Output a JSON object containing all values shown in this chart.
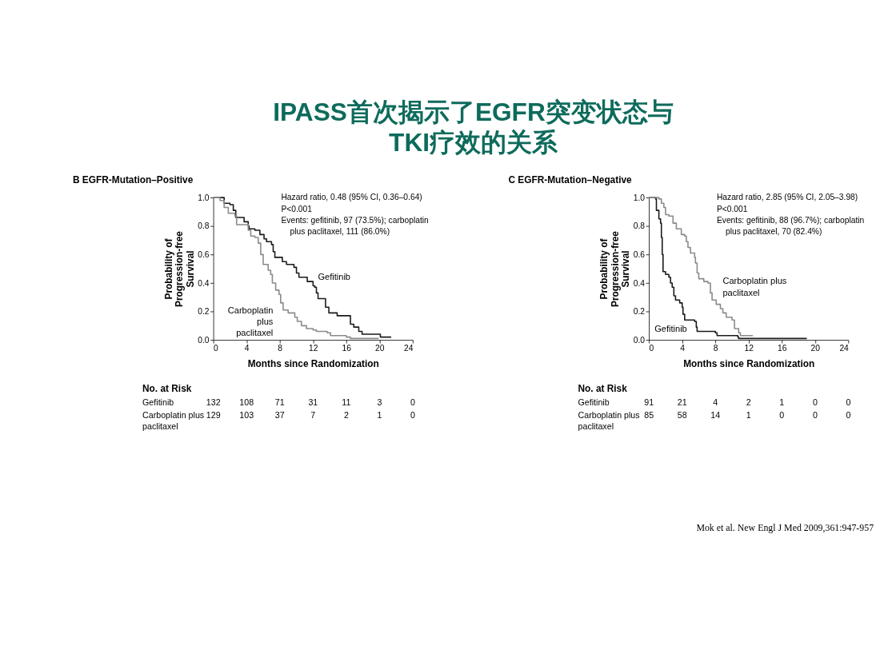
{
  "chart_data": [
    {
      "type": "step",
      "title": "IPASS首次揭示了EGFR突变状态与TKI疗效的关系",
      "subtitle": "B EGFR-Mutation–Positive",
      "xlabel": "Months since Randomization",
      "ylabel": "Probability of Progression-free Survival",
      "xlim": [
        0,
        24
      ],
      "ylim": [
        0,
        1
      ],
      "xticks": [
        0,
        4,
        8,
        12,
        16,
        20,
        24
      ],
      "yticks": [
        {
          "value": 0,
          "label": "0.0"
        },
        {
          "value": 0.2,
          "label": "0.2"
        },
        {
          "value": 0.4,
          "label": "0.4"
        },
        {
          "value": 0.6,
          "label": "0.6"
        },
        {
          "value": 0.8,
          "label": "0.8"
        },
        {
          "value": 1,
          "label": "1.0"
        }
      ],
      "grid": false,
      "legend": false,
      "marker": "none",
      "line_style": "solid",
      "series": [
        {
          "name": "Gefitinib",
          "color": "#1a1a1a",
          "x": [
            0,
            1.3,
            2.0,
            2.4,
            2.7,
            3.7,
            4.2,
            4.3,
            5.0,
            5.6,
            6.1,
            6.4,
            7.0,
            7.2,
            7.4,
            8.3,
            8.8,
            9.7,
            10.0,
            10.3,
            11.3,
            12.0,
            12.2,
            12.4,
            12.6,
            13.5,
            13.9,
            14.9,
            16.5,
            16.9,
            17.5,
            17.9,
            20.1,
            21.4
          ],
          "values": [
            1.0,
            0.96,
            0.95,
            0.91,
            0.86,
            0.83,
            0.8,
            0.78,
            0.77,
            0.74,
            0.71,
            0.69,
            0.67,
            0.62,
            0.58,
            0.55,
            0.53,
            0.51,
            0.47,
            0.44,
            0.41,
            0.38,
            0.37,
            0.33,
            0.29,
            0.23,
            0.19,
            0.17,
            0.11,
            0.09,
            0.06,
            0.04,
            0.02,
            0.02
          ]
        },
        {
          "name": "Carboplatin plus paclitaxel",
          "color": "#8a8a8a",
          "x": [
            0,
            0.8,
            1.3,
            1.8,
            2.6,
            2.8,
            4.2,
            4.5,
            5.0,
            5.4,
            5.7,
            6.0,
            6.6,
            6.9,
            7.1,
            7.5,
            7.9,
            8.1,
            8.4,
            9.0,
            9.8,
            10.1,
            10.6,
            11.2,
            12.0,
            12.4,
            13.7,
            14.1,
            16.0,
            16.5,
            19.9
          ],
          "values": [
            1.0,
            0.98,
            0.93,
            0.89,
            0.87,
            0.81,
            0.77,
            0.73,
            0.72,
            0.68,
            0.6,
            0.53,
            0.49,
            0.46,
            0.4,
            0.35,
            0.32,
            0.26,
            0.21,
            0.19,
            0.16,
            0.13,
            0.1,
            0.08,
            0.07,
            0.06,
            0.05,
            0.03,
            0.02,
            0.01,
            0.01
          ]
        }
      ],
      "annotations": [
        "Hazard ratio, 0.48 (95% CI, 0.36–0.64)",
        "P<0.001",
        "Events: gefitinib, 97 (73.5%); carboplatin",
        "plus paclitaxel, 111 (86.0%)",
        "No. at Risk",
        "Gefitinib  132  108  71  31  11  3  0",
        "Carboplatin plus paclitaxel  129  103  37  7  2  1  0"
      ]
    },
    {
      "type": "step",
      "subtitle": "C EGFR-Mutation–Negative",
      "xlabel": "Months since Randomization",
      "ylabel": "Probability of Progression-free Survival",
      "xlim": [
        0,
        24
      ],
      "ylim": [
        0,
        1
      ],
      "xticks": [
        0,
        4,
        8,
        12,
        16,
        20,
        24
      ],
      "yticks": [
        {
          "value": 0,
          "label": "0.0"
        },
        {
          "value": 0.2,
          "label": "0.2"
        },
        {
          "value": 0.4,
          "label": "0.4"
        },
        {
          "value": 0.6,
          "label": "0.6"
        },
        {
          "value": 0.8,
          "label": "0.8"
        },
        {
          "value": 1,
          "label": "1.0"
        }
      ],
      "grid": false,
      "legend": false,
      "marker": "none",
      "line_style": "solid",
      "series": [
        {
          "name": "Gefitinib",
          "color": "#1a1a1a",
          "x": [
            0,
            0.8,
            0.9,
            1.2,
            1.4,
            1.5,
            1.6,
            1.7,
            2.0,
            2.4,
            2.6,
            2.8,
            3.0,
            3.2,
            3.7,
            4.0,
            4.1,
            4.3,
            5.5,
            5.7,
            5.8,
            8.0,
            8.2,
            10.7,
            10.8,
            19.0
          ],
          "values": [
            1.0,
            0.99,
            0.91,
            0.85,
            0.82,
            0.72,
            0.6,
            0.48,
            0.46,
            0.44,
            0.4,
            0.37,
            0.31,
            0.28,
            0.26,
            0.23,
            0.18,
            0.14,
            0.13,
            0.09,
            0.06,
            0.05,
            0.03,
            0.02,
            0.01,
            0.01
          ]
        },
        {
          "name": "Carboplatin plus paclitaxel",
          "color": "#8a8a8a",
          "x": [
            0,
            1.2,
            1.5,
            1.8,
            2.0,
            2.4,
            2.9,
            3.3,
            3.9,
            4.3,
            4.5,
            4.7,
            5.0,
            5.5,
            5.6,
            5.8,
            6.0,
            6.6,
            7.1,
            7.4,
            7.6,
            8.1,
            8.6,
            8.9,
            9.3,
            10.0,
            10.3,
            10.8,
            11.0,
            12.5
          ],
          "values": [
            1.0,
            0.99,
            0.96,
            0.93,
            0.88,
            0.87,
            0.82,
            0.78,
            0.74,
            0.73,
            0.69,
            0.65,
            0.61,
            0.58,
            0.54,
            0.47,
            0.43,
            0.41,
            0.4,
            0.33,
            0.28,
            0.25,
            0.22,
            0.19,
            0.16,
            0.14,
            0.08,
            0.05,
            0.03,
            0.03
          ]
        }
      ],
      "annotations": [
        "Hazard ratio, 2.85 (95% CI, 2.05–3.98)",
        "P<0.001",
        "Events: gefitinib, 88 (96.7%); carboplatin",
        "plus paclitaxel, 70 (82.4%)",
        "No. at Risk",
        "Gefitinib  91  21  4  2  1  0  0",
        "Carboplatin plus paclitaxel  85  58  14  1  0  0  0",
        "Mok et al. New Engl J Med 2009,361:947-957"
      ]
    }
  ]
}
